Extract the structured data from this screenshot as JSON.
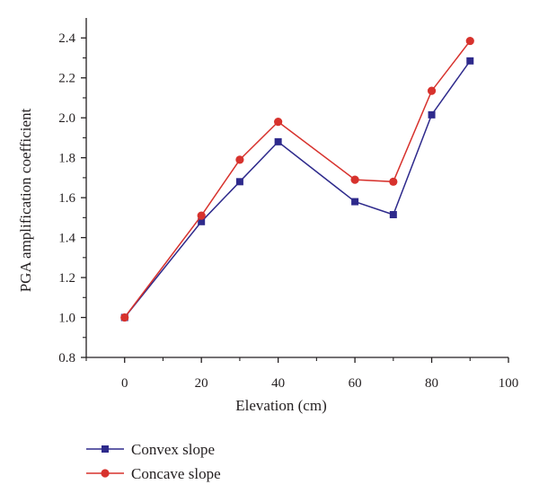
{
  "chart_data": {
    "type": "line",
    "xlabel": "Elevation (cm)",
    "ylabel": "PGA amplification coefficient",
    "xlim": [
      -10,
      100
    ],
    "ylim": [
      0.8,
      2.5
    ],
    "xticks": [
      0,
      20,
      40,
      60,
      80,
      100
    ],
    "xtick_labels": [
      "0",
      "20",
      "40",
      "60",
      "80",
      "100"
    ],
    "yticks": [
      0.8,
      1.0,
      1.2,
      1.4,
      1.6,
      1.8,
      2.0,
      2.2,
      2.4
    ],
    "ytick_labels": [
      "0.8",
      "1.0",
      "1.2",
      "1.4",
      "1.6",
      "1.8",
      "2.0",
      "2.2",
      "2.4"
    ],
    "grid": false,
    "legend_position": "bottom-left",
    "x": [
      0,
      20,
      30,
      40,
      60,
      70,
      80,
      90
    ],
    "series": [
      {
        "name": "Convex slope",
        "marker": "square",
        "color": "#2e2a8c",
        "values": [
          1.0,
          1.48,
          1.68,
          1.88,
          1.58,
          1.515,
          2.015,
          2.285
        ]
      },
      {
        "name": "Concave slope",
        "marker": "circle",
        "color": "#d7322d",
        "values": [
          1.0,
          1.51,
          1.79,
          1.98,
          1.69,
          1.68,
          2.135,
          2.385
        ]
      }
    ]
  }
}
